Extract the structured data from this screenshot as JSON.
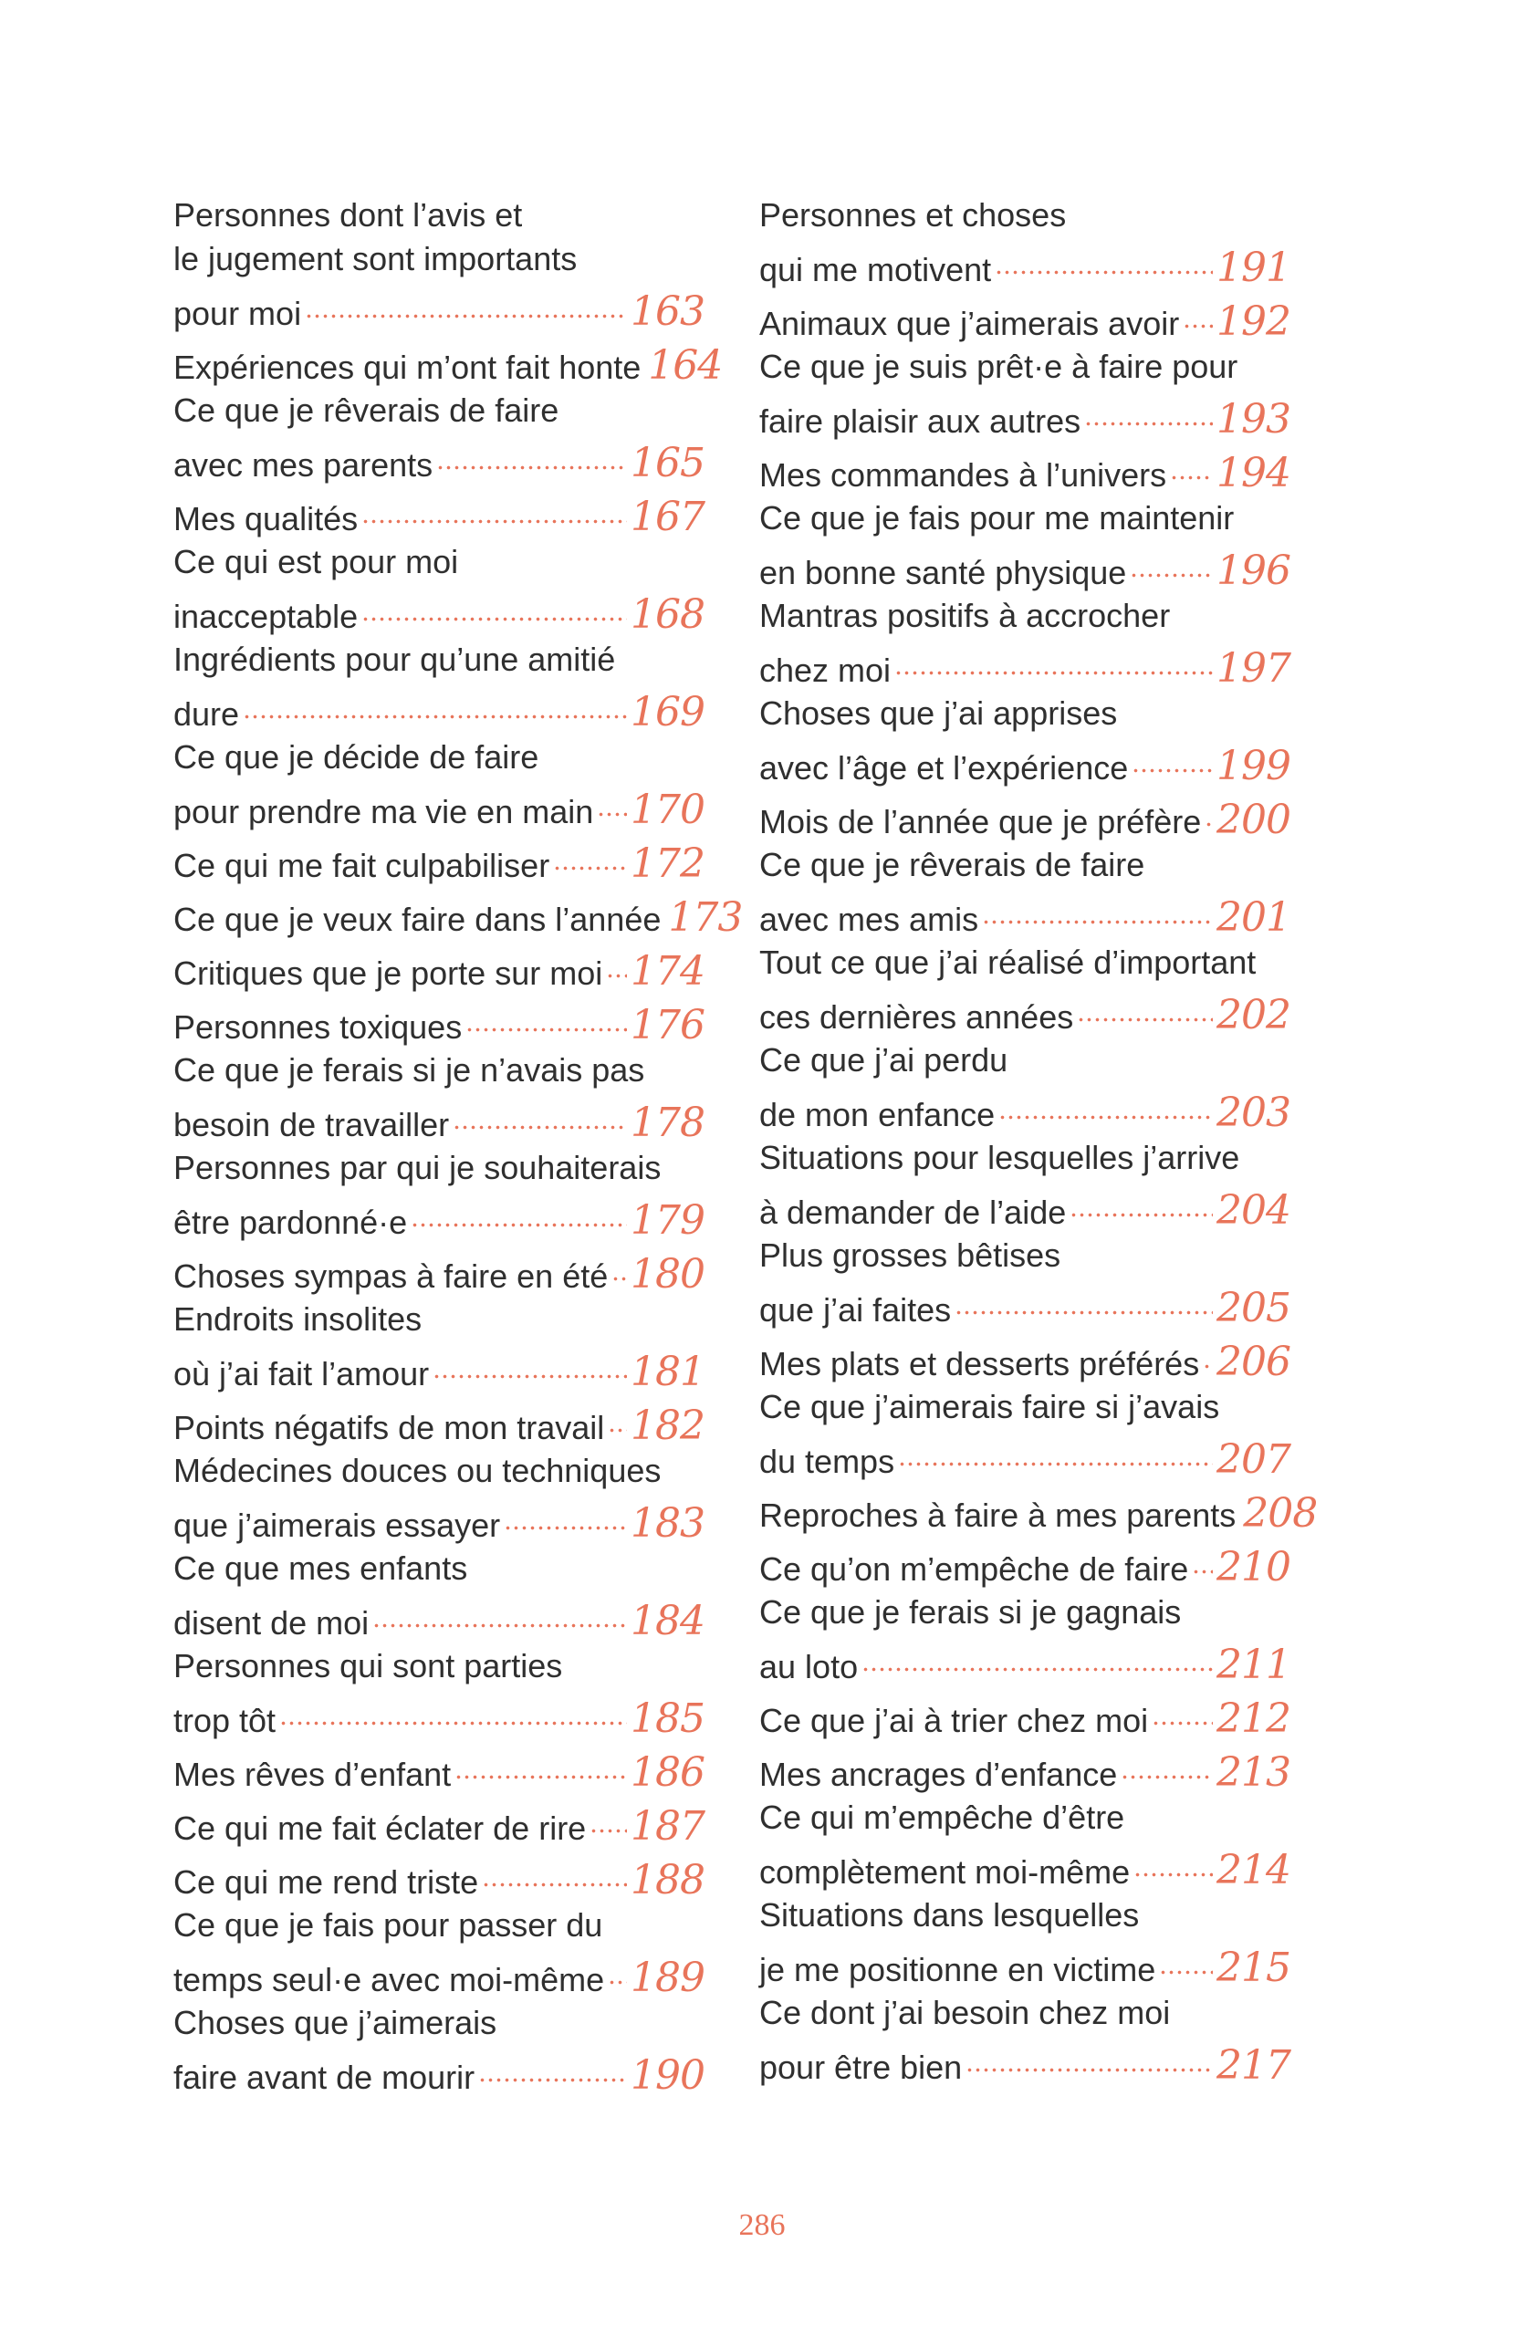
{
  "colors": {
    "accent": "#e8745a",
    "text": "#2f2f2f"
  },
  "left_column": [
    {
      "lines": [
        "Personnes dont l’avis et",
        "le jugement sont importants",
        "pour moi"
      ],
      "page": "163"
    },
    {
      "lines": [
        "Expériences qui m’ont fait honte"
      ],
      "page": "164"
    },
    {
      "lines": [
        "Ce que je rêverais de faire",
        "avec mes parents"
      ],
      "page": "165"
    },
    {
      "lines": [
        "Mes qualités"
      ],
      "page": "167"
    },
    {
      "lines": [
        "Ce qui est pour moi",
        "inacceptable"
      ],
      "page": "168"
    },
    {
      "lines": [
        "Ingrédients pour qu’une amitié",
        "dure"
      ],
      "page": "169"
    },
    {
      "lines": [
        "Ce que je décide de faire",
        "pour prendre ma vie en main"
      ],
      "page": "170"
    },
    {
      "lines": [
        "Ce qui me fait culpabiliser"
      ],
      "page": "172"
    },
    {
      "lines": [
        "Ce que je veux faire dans l’année"
      ],
      "page": "173"
    },
    {
      "lines": [
        "Critiques que je porte sur moi"
      ],
      "page": "174"
    },
    {
      "lines": [
        "Personnes toxiques"
      ],
      "page": "176"
    },
    {
      "lines": [
        "Ce que je ferais si je n’avais pas",
        "besoin de travailler"
      ],
      "page": "178"
    },
    {
      "lines": [
        "Personnes par qui je souhaiterais",
        "être pardonné·e"
      ],
      "page": "179"
    },
    {
      "lines": [
        "Choses sympas à faire en été"
      ],
      "page": "180"
    },
    {
      "lines": [
        "Endroits insolites",
        "où j’ai fait l’amour"
      ],
      "page": "181"
    },
    {
      "lines": [
        "Points négatifs de mon travail"
      ],
      "page": "182"
    },
    {
      "lines": [
        "Médecines douces ou techniques",
        "que j’aimerais essayer"
      ],
      "page": "183"
    },
    {
      "lines": [
        "Ce que mes enfants",
        "disent de moi"
      ],
      "page": "184"
    },
    {
      "lines": [
        "Personnes qui sont parties",
        "trop tôt"
      ],
      "page": "185"
    },
    {
      "lines": [
        "Mes rêves d’enfant"
      ],
      "page": "186"
    },
    {
      "lines": [
        "Ce qui me fait éclater de rire"
      ],
      "page": "187"
    },
    {
      "lines": [
        "Ce qui me rend triste"
      ],
      "page": "188"
    },
    {
      "lines": [
        "Ce que je fais pour passer du",
        "temps seul·e avec moi-même"
      ],
      "page": "189"
    },
    {
      "lines": [
        "Choses que j’aimerais",
        "faire avant de mourir"
      ],
      "page": "190"
    }
  ],
  "right_column": [
    {
      "lines": [
        "Personnes et choses",
        "qui me motivent"
      ],
      "page": "191"
    },
    {
      "lines": [
        "Animaux que j’aimerais avoir"
      ],
      "page": "192"
    },
    {
      "lines": [
        "Ce que je suis prêt·e à faire pour",
        "faire plaisir aux autres"
      ],
      "page": "193"
    },
    {
      "lines": [
        "Mes commandes à l’univers"
      ],
      "page": "194"
    },
    {
      "lines": [
        "Ce que je fais pour me maintenir",
        "en bonne santé physique"
      ],
      "page": "196"
    },
    {
      "lines": [
        "Mantras positifs à accrocher",
        "chez moi"
      ],
      "page": "197"
    },
    {
      "lines": [
        "Choses que j’ai apprises",
        "avec l’âge et l’expérience"
      ],
      "page": "199"
    },
    {
      "lines": [
        "Mois de l’année que je préfère"
      ],
      "page": "200"
    },
    {
      "lines": [
        "Ce que je rêverais de faire",
        "avec mes amis"
      ],
      "page": "201"
    },
    {
      "lines": [
        "Tout ce que j’ai réalisé d’important",
        "ces dernières années"
      ],
      "page": "202"
    },
    {
      "lines": [
        "Ce que j’ai perdu",
        "de mon enfance"
      ],
      "page": "203"
    },
    {
      "lines": [
        "Situations pour lesquelles j’arrive",
        "à demander de l’aide"
      ],
      "page": "204"
    },
    {
      "lines": [
        "Plus grosses bêtises",
        "que j’ai faites"
      ],
      "page": "205"
    },
    {
      "lines": [
        "Mes plats et desserts préférés"
      ],
      "page": "206"
    },
    {
      "lines": [
        "Ce que j’aimerais faire si j’avais",
        "du temps"
      ],
      "page": "207"
    },
    {
      "lines": [
        "Reproches à faire à mes parents"
      ],
      "page": "208"
    },
    {
      "lines": [
        "Ce qu’on m’empêche de faire"
      ],
      "page": "210"
    },
    {
      "lines": [
        "Ce que je ferais si je gagnais",
        "au loto"
      ],
      "page": "211"
    },
    {
      "lines": [
        "Ce que j’ai à trier chez moi"
      ],
      "page": "212"
    },
    {
      "lines": [
        "Mes ancrages d’enfance"
      ],
      "page": "213"
    },
    {
      "lines": [
        "Ce qui m’empêche d’être",
        "complètement moi-même"
      ],
      "page": "214"
    },
    {
      "lines": [
        "Situations dans lesquelles",
        "je me positionne en victime"
      ],
      "page": "215"
    },
    {
      "lines": [
        "Ce dont j’ai besoin chez moi",
        "pour être bien"
      ],
      "page": "217"
    }
  ],
  "folio": "286"
}
